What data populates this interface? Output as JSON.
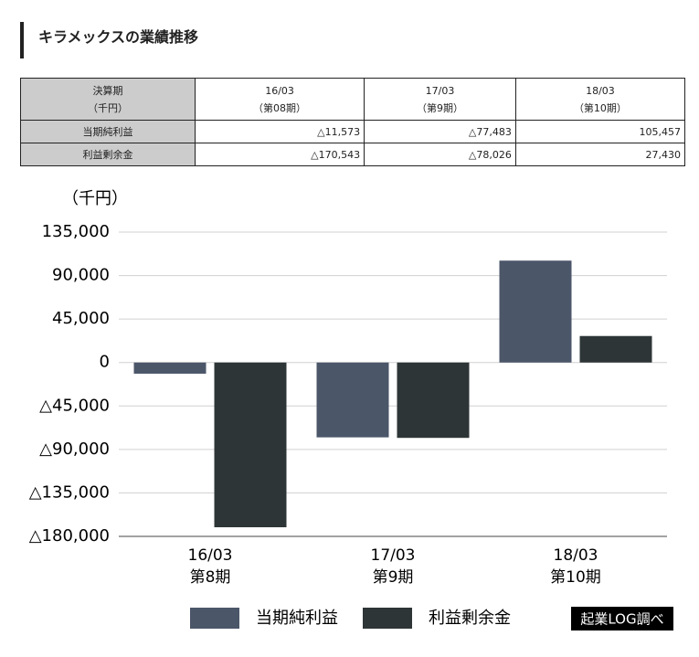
{
  "title": "キラメックスの業績推移",
  "table": {
    "header": [
      [
        "決算期",
        "（千円）"
      ],
      [
        "16/03",
        "（第08期）"
      ],
      [
        "17/03",
        "（第9期）"
      ],
      [
        "18/03",
        "（第10期）"
      ]
    ],
    "rows": [
      [
        "当期純利益",
        "△11,573",
        "△77,483",
        "105,457"
      ],
      [
        "利益剰余金",
        "△170,543",
        "△78,026",
        "27,430"
      ]
    ]
  },
  "chart_data": {
    "type": "bar",
    "y_label": "（千円）",
    "categories": [
      [
        "16/03",
        "第8期"
      ],
      [
        "17/03",
        "第9期"
      ],
      [
        "18/03",
        "第10期"
      ]
    ],
    "series": [
      {
        "name": "当期純利益",
        "color": "#4b5669",
        "values": [
          -11573,
          -77483,
          105457
        ]
      },
      {
        "name": "利益剰余金",
        "color": "#2e3536",
        "values": [
          -170543,
          -78026,
          27430
        ]
      }
    ],
    "ylim": [
      -180000,
      135000
    ],
    "yticks": [
      {
        "value": -180000,
        "label": "△180,000"
      },
      {
        "value": -135000,
        "label": "△135,000"
      },
      {
        "value": -90000,
        "label": "△90,000"
      },
      {
        "value": -45000,
        "label": "△45,000"
      },
      0,
      {
        "value": 45000,
        "label": "45,000"
      },
      {
        "value": 90000,
        "label": "90,000"
      },
      {
        "value": 135000,
        "label": "135,000"
      }
    ],
    "grid": true,
    "source": "起業LOG調べ"
  }
}
